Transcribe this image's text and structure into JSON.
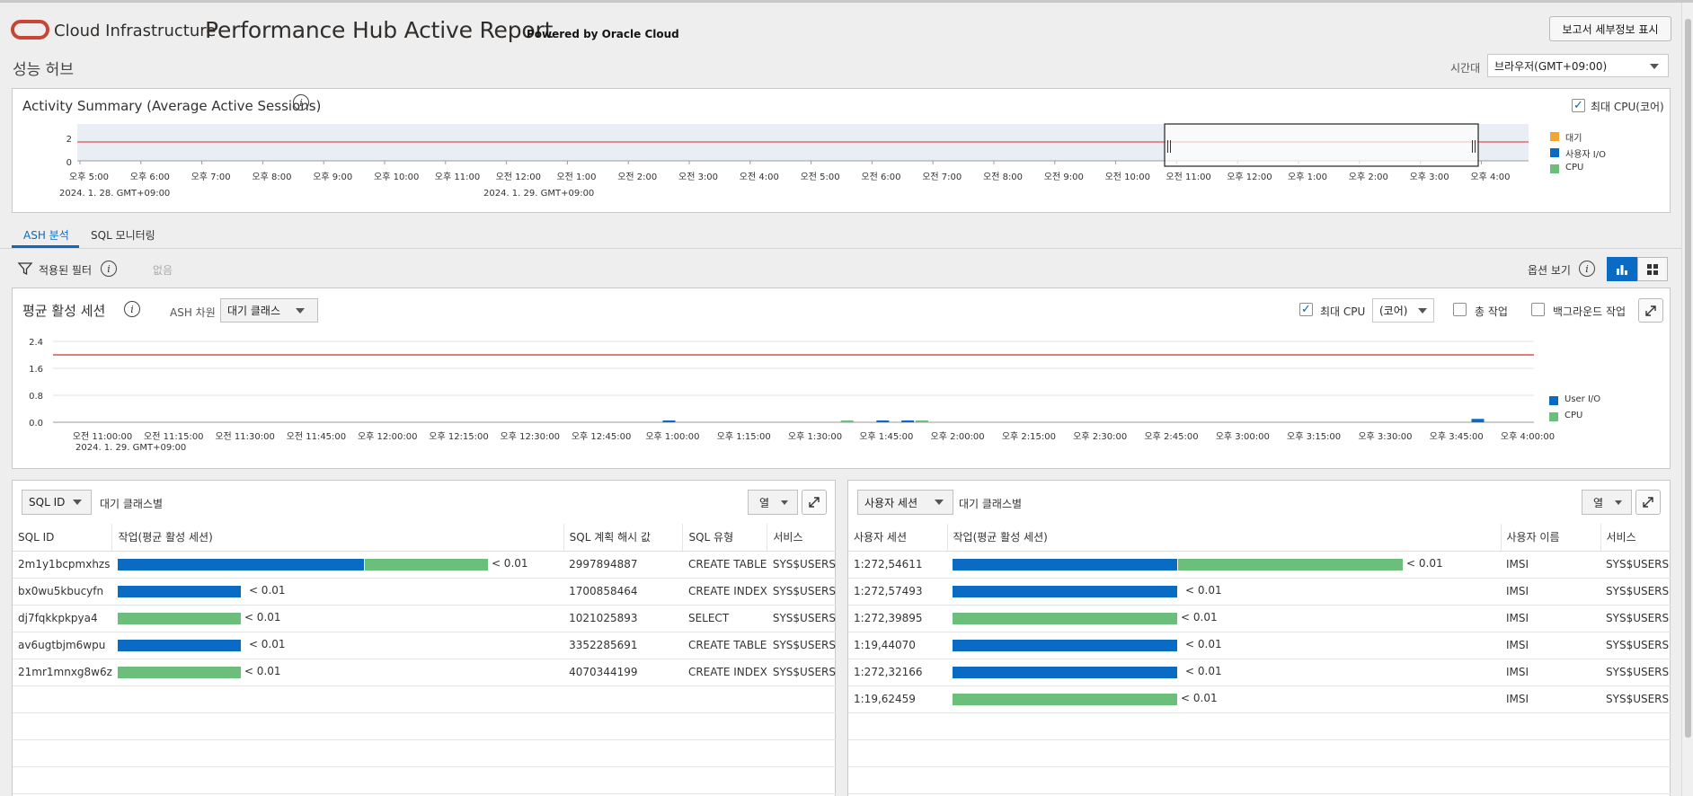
{
  "header": {
    "brand": "Cloud Infrastructure",
    "title": "Performance Hub Active Report",
    "powered_by": "Powered by Oracle Cloud",
    "show_details_button": "보고서 세부정보 표시"
  },
  "hub": {
    "title": "성능 허브",
    "timezone_label": "시간대",
    "timezone_value": "브라우저(GMT+09:00)"
  },
  "activity_summary": {
    "title": "Activity Summary (Average Active Sessions)",
    "max_cpu_label": "최대 CPU(코어)",
    "max_cpu_checked": true,
    "legend": [
      {
        "name": "대기",
        "color": "#f0a534"
      },
      {
        "name": "사용자 I/O",
        "color": "#0a6bc4"
      },
      {
        "name": "CPU",
        "color": "#6bbf7b"
      }
    ],
    "date_left": "2024. 1. 28. GMT+09:00",
    "date_mid": "2024. 1. 29. GMT+09:00",
    "chart_data": {
      "type": "area",
      "y_ticks": [
        "2",
        "0"
      ],
      "max_cpu_line": 2,
      "x_ticks": [
        "오후 5:00",
        "오후 6:00",
        "오후 7:00",
        "오후 8:00",
        "오후 9:00",
        "오후 10:00",
        "오후 11:00",
        "오전 12:00",
        "오전 1:00",
        "오전 2:00",
        "오전 3:00",
        "오전 4:00",
        "오전 5:00",
        "오전 6:00",
        "오전 7:00",
        "오전 8:00",
        "오전 9:00",
        "오전 10:00",
        "오전 11:00",
        "오후 12:00",
        "오후 1:00",
        "오후 2:00",
        "오후 3:00",
        "오후 4:00"
      ],
      "grid": false,
      "legend_position": "right"
    }
  },
  "tabs": [
    {
      "label": "ASH 분석",
      "active": true
    },
    {
      "label": "SQL 모니터링",
      "active": false
    }
  ],
  "filters": {
    "label": "적용된 필터",
    "value": "없음",
    "view_options_label": "옵션 보기"
  },
  "aas": {
    "title": "평균 활성 세션",
    "dimension_label": "ASH 차원",
    "dimension_value": "대기 클래스",
    "max_cpu_label": "최대 CPU",
    "max_cpu_checked": true,
    "cpu_unit_value": "(코어)",
    "total_activity_label": "총 작업",
    "background_label": "백그라운드 작업",
    "date_label": "2024. 1. 29. GMT+09:00",
    "legend": [
      {
        "name": "User I/O",
        "color": "#0a6bc4"
      },
      {
        "name": "CPU",
        "color": "#6bbf7b"
      }
    ],
    "chart_data": {
      "type": "bar",
      "y_ticks": [
        "2.4",
        "1.6",
        "0.8",
        "0.0"
      ],
      "ylim": [
        0,
        2.4
      ],
      "max_cpu_line": 2,
      "x_ticks": [
        "오전 11:00:00",
        "오전 11:15:00",
        "오전 11:30:00",
        "오전 11:45:00",
        "오후 12:00:00",
        "오후 12:15:00",
        "오후 12:30:00",
        "오후 12:45:00",
        "오후 1:00:00",
        "오후 1:15:00",
        "오후 1:30:00",
        "오후 1:45:00",
        "오후 2:00:00",
        "오후 2:15:00",
        "오후 2:30:00",
        "오후 2:45:00",
        "오후 3:00:00",
        "오후 3:15:00",
        "오후 3:30:00",
        "오후 3:45:00",
        "오후 4:00:00"
      ],
      "bars": [
        {
          "t": 7.95,
          "series": "User I/O",
          "value": 0.03
        },
        {
          "t": 10.45,
          "series": "CPU",
          "value": 0.03
        },
        {
          "t": 10.95,
          "series": "User I/O",
          "value": 0.04
        },
        {
          "t": 11.3,
          "series": "User I/O",
          "value": 0.04
        },
        {
          "t": 11.5,
          "series": "CPU",
          "value": 0.03
        },
        {
          "t": 19.3,
          "series": "User I/O",
          "value": 0.1
        }
      ],
      "legend_position": "right"
    }
  },
  "sql_table": {
    "dimension_value": "SQL ID",
    "group_label": "대기 클래스별",
    "columns_button": "열",
    "headers": [
      "SQL ID",
      "작업(평균 활성 세션)",
      "SQL 계획 해시 값",
      "SQL 유형",
      "서비스"
    ],
    "rows": [
      {
        "id": "2m1y1bcpmxhzs",
        "io": 0.01,
        "cpu": 0.005,
        "value": "< 0.01",
        "plan": "2997894887",
        "type": "CREATE TABLE",
        "service": "SYS$USERS"
      },
      {
        "id": "bx0wu5kbucyfn",
        "io": 0.005,
        "cpu": 0,
        "value": "< 0.01",
        "plan": "1700858464",
        "type": "CREATE INDEX",
        "service": "SYS$USERS"
      },
      {
        "id": "dj7fqkkpkpya4",
        "io": 0,
        "cpu": 0.005,
        "value": "< 0.01",
        "plan": "1021025893",
        "type": "SELECT",
        "service": "SYS$USERS"
      },
      {
        "id": "av6ugtbjm6wpu",
        "io": 0.005,
        "cpu": 0,
        "value": "< 0.01",
        "plan": "3352285691",
        "type": "CREATE TABLE",
        "service": "SYS$USERS"
      },
      {
        "id": "21mr1mnxg8w6z",
        "io": 0,
        "cpu": 0.005,
        "value": "< 0.01",
        "plan": "4070344199",
        "type": "CREATE INDEX",
        "service": "SYS$USERS"
      }
    ]
  },
  "session_table": {
    "dimension_value": "사용자 세션",
    "group_label": "대기 클래스별",
    "columns_button": "열",
    "headers": [
      "사용자 세션",
      "작업(평균 활성 세션)",
      "사용자 이름",
      "서비스"
    ],
    "rows": [
      {
        "session": "1:272,54611",
        "io": 0.005,
        "cpu": 0.005,
        "value": "< 0.01",
        "user": "IMSI",
        "service": "SYS$USERS"
      },
      {
        "session": "1:272,57493",
        "io": 0.005,
        "cpu": 0,
        "value": "< 0.01",
        "user": "IMSI",
        "service": "SYS$USERS"
      },
      {
        "session": "1:272,39895",
        "io": 0,
        "cpu": 0.005,
        "value": "< 0.01",
        "user": "IMSI",
        "service": "SYS$USERS"
      },
      {
        "session": "1:19,44070",
        "io": 0.005,
        "cpu": 0,
        "value": "< 0.01",
        "user": "IMSI",
        "service": "SYS$USERS"
      },
      {
        "session": "1:272,32166",
        "io": 0.005,
        "cpu": 0,
        "value": "< 0.01",
        "user": "IMSI",
        "service": "SYS$USERS"
      },
      {
        "session": "1:19,62459",
        "io": 0,
        "cpu": 0.005,
        "value": "< 0.01",
        "user": "IMSI",
        "service": "SYS$USERS"
      }
    ]
  },
  "colors": {
    "io": "#0a6bc4",
    "cpu": "#6bbf7b",
    "wait": "#f0a534",
    "max_cpu_line": "#d9534f",
    "accent": "#0a6bc4"
  }
}
